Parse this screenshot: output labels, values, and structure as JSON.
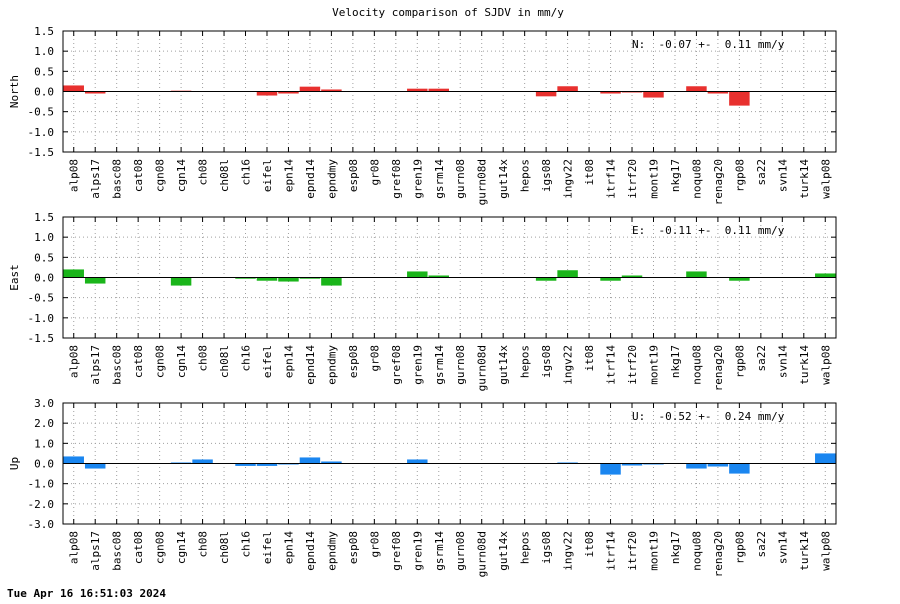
{
  "title": "Velocity comparison of SJDV in mm/y",
  "timestamp": "Tue Apr 16 16:51:03 2024",
  "chart_data": [
    {
      "type": "bar",
      "ylabel": "North",
      "color": "#e8302e",
      "ylim": [
        -1.5,
        1.5
      ],
      "yticks": [
        "1.5",
        "1.0",
        "0.5",
        "0.0",
        "-0.5",
        "-1.0",
        "-1.5"
      ],
      "annotation": "N:  -0.07 +-  0.11 mm/y",
      "grid": true,
      "categories": [
        "alp08",
        "alps17",
        "basc08",
        "cat08",
        "cgn08",
        "cgn14",
        "ch08",
        "ch08l",
        "ch16",
        "eifel",
        "epn14",
        "epnd14",
        "epndmy",
        "esp08",
        "gr08",
        "gref08",
        "gren19",
        "gsrm14",
        "gurn08",
        "gurn08d",
        "gut14x",
        "hepos",
        "igs08",
        "ingv22",
        "it08",
        "itrf14",
        "itrf20",
        "mont19",
        "nkg17",
        "noqu08",
        "renag20",
        "rgp08",
        "sa22",
        "svn14",
        "turk14",
        "walp08"
      ],
      "values": [
        0.15,
        -0.05,
        0,
        0,
        0,
        0.02,
        0,
        0,
        0,
        -0.1,
        -0.05,
        0.12,
        0.05,
        0,
        0,
        0,
        0.07,
        0.07,
        0,
        0,
        0,
        0,
        -0.12,
        0.13,
        0,
        -0.05,
        -0.02,
        -0.15,
        0,
        0.13,
        -0.05,
        -0.35,
        0,
        0,
        0,
        0
      ]
    },
    {
      "type": "bar",
      "ylabel": "East",
      "color": "#1ab51a",
      "ylim": [
        -1.5,
        1.5
      ],
      "yticks": [
        "1.5",
        "1.0",
        "0.5",
        "0.0",
        "-0.5",
        "-1.0",
        "-1.5"
      ],
      "annotation": "E:  -0.11 +-  0.11 mm/y",
      "grid": true,
      "categories": [
        "alp08",
        "alps17",
        "basc08",
        "cat08",
        "cgn08",
        "cgn14",
        "ch08",
        "ch08l",
        "ch16",
        "eifel",
        "epn14",
        "epnd14",
        "epndmy",
        "esp08",
        "gr08",
        "gref08",
        "gren19",
        "gsrm14",
        "gurn08",
        "gurn08d",
        "gut14x",
        "hepos",
        "igs08",
        "ingv22",
        "it08",
        "itrf14",
        "itrf20",
        "mont19",
        "nkg17",
        "noqu08",
        "renag20",
        "rgp08",
        "sa22",
        "svn14",
        "turk14",
        "walp08"
      ],
      "values": [
        0.2,
        -0.15,
        0,
        0,
        0,
        -0.2,
        0,
        0,
        -0.03,
        -0.08,
        -0.1,
        -0.03,
        -0.2,
        0,
        0,
        0,
        0.15,
        0.05,
        0,
        0,
        0,
        0,
        -0.08,
        0.18,
        0,
        -0.08,
        0.05,
        0,
        0,
        0.15,
        0,
        -0.08,
        0,
        0,
        0,
        0.1
      ]
    },
    {
      "type": "bar",
      "ylabel": "Up",
      "color": "#1a86f0",
      "ylim": [
        -3.0,
        3.0
      ],
      "yticks": [
        "3.0",
        "2.0",
        "1.0",
        "0.0",
        "-1.0",
        "-2.0",
        "-3.0"
      ],
      "annotation": "U:  -0.52 +-  0.24 mm/y",
      "grid": true,
      "categories": [
        "alp08",
        "alps17",
        "basc08",
        "cat08",
        "cgn08",
        "cgn14",
        "ch08",
        "ch08l",
        "ch16",
        "eifel",
        "epn14",
        "epnd14",
        "epndmy",
        "esp08",
        "gr08",
        "gref08",
        "gren19",
        "gsrm14",
        "gurn08",
        "gurn08d",
        "gut14x",
        "hepos",
        "igs08",
        "ingv22",
        "it08",
        "itrf14",
        "itrf20",
        "mont19",
        "nkg17",
        "noqu08",
        "renag20",
        "rgp08",
        "sa22",
        "svn14",
        "turk14",
        "walp08"
      ],
      "values": [
        0.35,
        -0.25,
        0,
        0,
        0,
        0.05,
        0.2,
        0,
        -0.12,
        -0.12,
        -0.05,
        0.3,
        0.1,
        0,
        0,
        0,
        0.2,
        0,
        0,
        0,
        0,
        0,
        0,
        0.05,
        0,
        -0.55,
        -0.1,
        -0.05,
        0,
        -0.25,
        -0.15,
        -0.5,
        0,
        0,
        0,
        0.5
      ]
    }
  ]
}
